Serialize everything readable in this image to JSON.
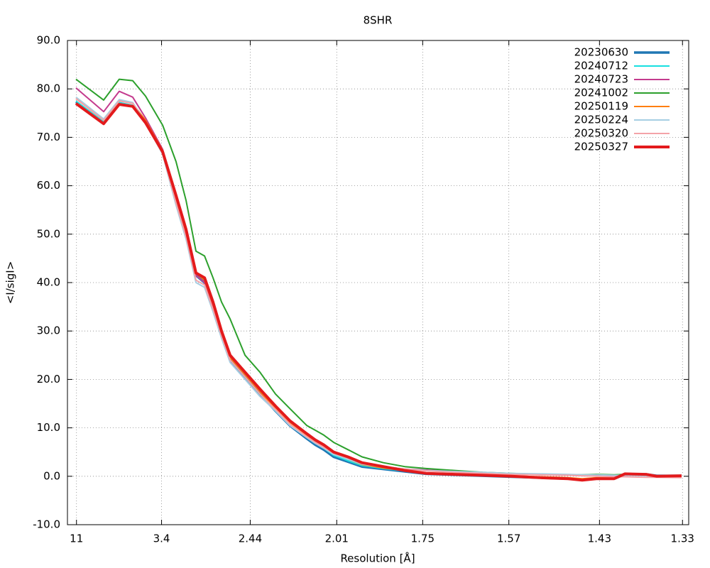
{
  "chart_data": {
    "type": "line",
    "title": "8SHR",
    "x_label": "Resolution [Å]",
    "y_label": "<I/sigI>",
    "x": [
      0.0078,
      0.0333,
      0.0476,
      0.06,
      0.0718,
      0.0875,
      0.0998,
      0.109,
      0.1181,
      0.126,
      0.1338,
      0.1416,
      0.1495,
      0.1632,
      0.1769,
      0.1912,
      0.2043,
      0.2199,
      0.2278,
      0.2356,
      0.2447,
      0.2578,
      0.2708,
      0.2904,
      0.31,
      0.3296,
      0.3557,
      0.3818,
      0.4079,
      0.434,
      0.4601,
      0.4731,
      0.4862,
      0.5025,
      0.5123,
      0.5319,
      0.5417,
      0.5645
    ],
    "xlim": [
      0,
      0.571
    ],
    "xticks": [
      {
        "value": 0.0083,
        "label": "11"
      },
      {
        "value": 0.0865,
        "label": "3.4"
      },
      {
        "value": 0.168,
        "label": "2.44"
      },
      {
        "value": 0.2475,
        "label": "2.01"
      },
      {
        "value": 0.3265,
        "label": "1.75"
      },
      {
        "value": 0.4057,
        "label": "1.57"
      },
      {
        "value": 0.489,
        "label": "1.43"
      },
      {
        "value": 0.5653,
        "label": "1.33"
      }
    ],
    "ylim": [
      -10,
      90
    ],
    "yticks": [
      {
        "value": -10,
        "label": "-10.0"
      },
      {
        "value": 0,
        "label": "0.0"
      },
      {
        "value": 10,
        "label": "10.0"
      },
      {
        "value": 20,
        "label": "20.0"
      },
      {
        "value": 30,
        "label": "30.0"
      },
      {
        "value": 40,
        "label": "40.0"
      },
      {
        "value": 50,
        "label": "50.0"
      },
      {
        "value": 60,
        "label": "60.0"
      },
      {
        "value": 70,
        "label": "70.0"
      },
      {
        "value": 80,
        "label": "80.0"
      },
      {
        "value": 90,
        "label": "90.0"
      }
    ],
    "grid": true,
    "legend": "top-right",
    "series": [
      {
        "name": "20230630",
        "color": "#1f77b4",
        "values": [
          77.3,
          73,
          77,
          76.5,
          73,
          67,
          57,
          50,
          41.5,
          40,
          35,
          29,
          24,
          20.5,
          17,
          13.5,
          10.5,
          7.8,
          6.5,
          5.5,
          4,
          3,
          2,
          1.5,
          1,
          0.5,
          0.3,
          0.1,
          -0.1,
          -0.3,
          -0.5,
          -0.7,
          -0.5,
          -0.5,
          0.4,
          0.4,
          0.1,
          0.1
        ]
      },
      {
        "name": "20240712",
        "color": "#17dfe0",
        "values": [
          77.5,
          73.2,
          77.2,
          76.6,
          73,
          67,
          57,
          50,
          41.5,
          40,
          35,
          29,
          24,
          20.5,
          17,
          13.5,
          10.8,
          8,
          6.8,
          5.8,
          4.3,
          3.2,
          2.2,
          1.6,
          1.1,
          0.6,
          0.4,
          0.2,
          0,
          -0.2,
          -0.4,
          -0.6,
          -0.4,
          -0.4,
          0.4,
          0.4,
          0.1,
          0.1
        ]
      },
      {
        "name": "20240723",
        "color": "#c43b8e",
        "values": [
          80.2,
          75.3,
          79.5,
          78.3,
          74,
          67.5,
          58,
          50,
          41.5,
          40,
          35,
          29.5,
          24.5,
          21,
          17.5,
          14,
          11,
          8.5,
          7,
          6,
          4.8,
          3.8,
          2.8,
          2,
          1.5,
          1.3,
          1.0,
          0.7,
          0.5,
          0.3,
          0.2,
          0.1,
          0.1,
          0.1,
          0.2,
          0.2,
          0.1,
          0.0
        ]
      },
      {
        "name": "20241002",
        "color": "#2ca02c",
        "values": [
          82,
          77.7,
          82,
          81.7,
          78.5,
          72.5,
          65,
          57,
          46.5,
          45.5,
          41,
          36,
          32.5,
          25,
          21.5,
          17,
          14,
          10.5,
          9.5,
          8.5,
          7,
          5.5,
          4,
          2.8,
          2,
          1.6,
          1.2,
          0.8,
          0.6,
          0.4,
          0.3,
          0.3,
          0.4,
          0.3,
          0.4,
          0.3,
          0.1,
          0.0
        ]
      },
      {
        "name": "20250119",
        "color": "#ff7f0e",
        "values": [
          78,
          73.6,
          77.6,
          77,
          73.5,
          67.3,
          57.5,
          50.5,
          42,
          40.5,
          35.5,
          29.5,
          24.5,
          21,
          17.5,
          14,
          11,
          8.3,
          7,
          6,
          4.6,
          3.5,
          2.4,
          1.7,
          1.2,
          0.7,
          0.5,
          0.3,
          0.1,
          -0.1,
          -0.3,
          -0.5,
          -0.3,
          -0.3,
          0.4,
          0.3,
          0.1,
          0.1
        ]
      },
      {
        "name": "20250224",
        "color": "#a6cee3",
        "values": [
          78.3,
          73.8,
          77.8,
          77.2,
          73,
          66.5,
          56,
          49,
          40,
          39,
          34,
          28.5,
          23.5,
          20,
          16.5,
          13.5,
          10.5,
          8,
          6.8,
          5.8,
          4.5,
          3.5,
          2.5,
          1.9,
          1.5,
          1.2,
          1.0,
          0.8,
          0.6,
          0.5,
          0.4,
          0.3,
          0.3,
          0.2,
          0.2,
          0.1,
          0,
          0
        ]
      },
      {
        "name": "20250320",
        "color": "#f4a3a8",
        "values": [
          78,
          73.5,
          77.5,
          77,
          73,
          66.7,
          56.5,
          49.5,
          40.5,
          39.5,
          34.5,
          29,
          24,
          20.5,
          17,
          13.8,
          10.8,
          8.2,
          7,
          6,
          4.8,
          3.8,
          2.8,
          2.0,
          1.5,
          1.1,
          0.8,
          0.6,
          0.4,
          0.3,
          0.2,
          0.1,
          0.0,
          -0.1,
          -0.1,
          -0.2,
          -0.2,
          -0.3
        ]
      },
      {
        "name": "20250327",
        "color": "#e31a1c",
        "values": [
          77.0,
          72.8,
          76.8,
          76.4,
          73,
          67,
          58,
          51,
          42,
          41,
          36,
          30,
          25,
          21.5,
          18,
          14.5,
          11.5,
          8.8,
          7.5,
          6.5,
          5,
          4,
          2.8,
          2.0,
          1.2,
          0.6,
          0.4,
          0.2,
          0.0,
          -0.3,
          -0.5,
          -0.8,
          -0.5,
          -0.5,
          0.5,
          0.4,
          0,
          0.1
        ]
      }
    ]
  }
}
